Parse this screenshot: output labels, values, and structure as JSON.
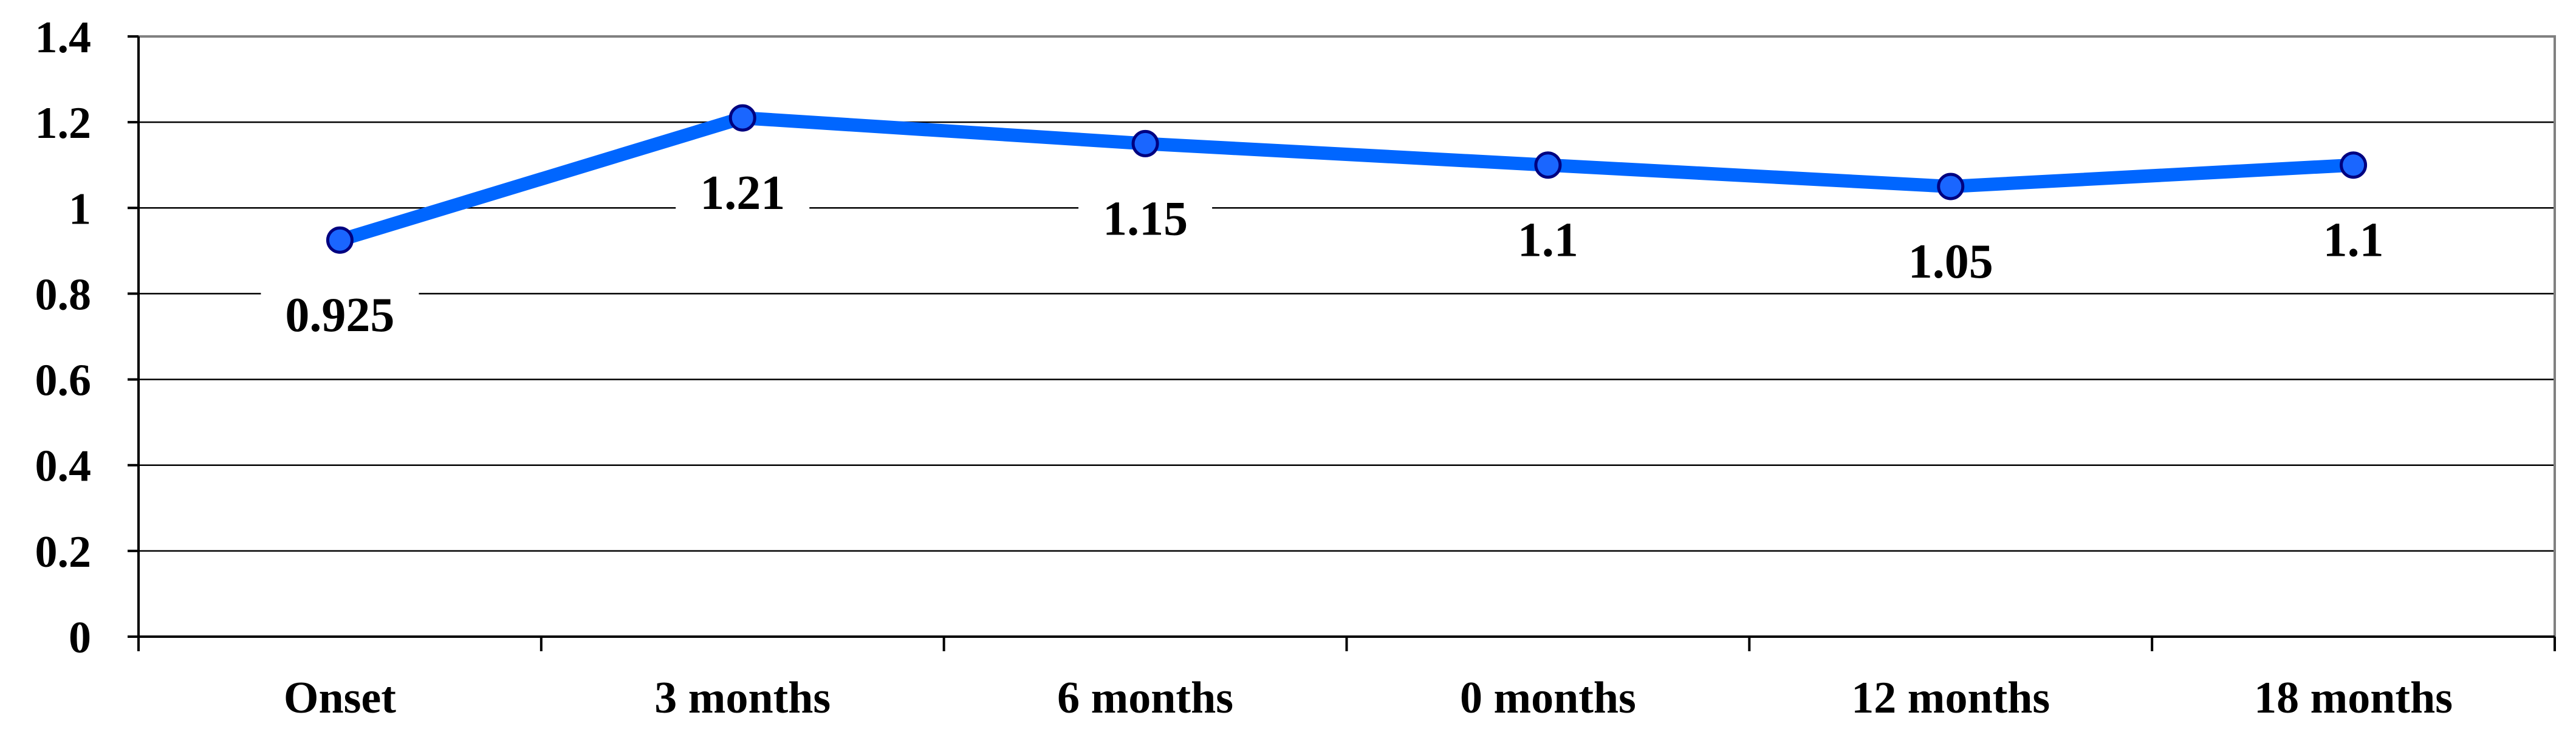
{
  "chart_data": {
    "type": "line",
    "title": "",
    "xlabel": "",
    "ylabel": "",
    "categories": [
      "Onset",
      "3 months",
      "6 months",
      "0 months",
      "12 months",
      "18 months"
    ],
    "series": [
      {
        "values": [
          0.925,
          1.21,
          1.15,
          1.1,
          1.05,
          1.1
        ],
        "data_labels": [
          "0.925",
          "1.21",
          "1.15",
          "1.1",
          "1.05",
          "1.1"
        ]
      }
    ],
    "ylim": [
      0,
      1.4
    ],
    "yticks": [
      0,
      0.2,
      0.4,
      0.6,
      0.8,
      1,
      1.2,
      1.4
    ],
    "ytick_labels": [
      "0",
      "0.2",
      "0.4",
      "0.6",
      "0.8",
      "1",
      "1.2",
      "1.4"
    ],
    "grid": true,
    "legend": "none",
    "colors": {
      "line": "#0066ff",
      "marker_fill": "#1a66ff",
      "marker_edge": "#000080",
      "grid": "#000000",
      "plot_border": "#808080",
      "background": "#ffffff"
    }
  }
}
